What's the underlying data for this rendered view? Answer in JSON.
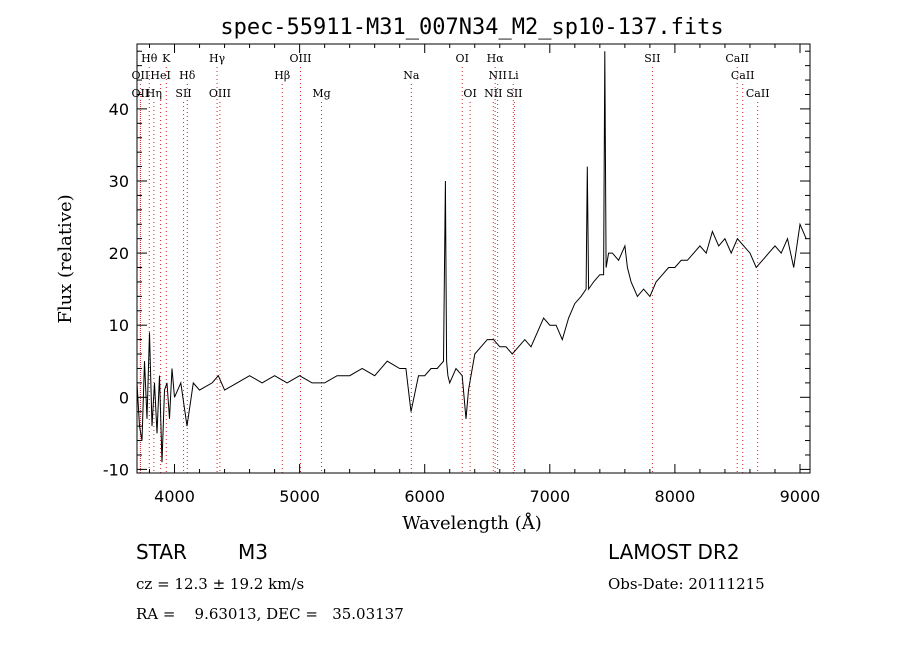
{
  "chart_data": {
    "type": "line",
    "title": "spec-55911-M31_007N34_M2_sp10-137.fits",
    "xlabel": "Wavelength (Å)",
    "ylabel": "Flux (relative)",
    "xlim": [
      3700,
      9080
    ],
    "ylim": [
      -10.5,
      49
    ],
    "xticks": [
      4000,
      5000,
      6000,
      7000,
      8000,
      9000
    ],
    "yticks": [
      -10,
      0,
      10,
      20,
      30,
      40
    ],
    "grid": false,
    "line_color": "#000000",
    "marker_color": "#cc2222",
    "series": [
      {
        "x": [
          3700,
          3720,
          3740,
          3760,
          3780,
          3800,
          3820,
          3840,
          3860,
          3880,
          3900,
          3920,
          3940,
          3960,
          3980,
          4000,
          4050,
          4100,
          4150,
          4200,
          4300,
          4350,
          4400,
          4500,
          4600,
          4700,
          4800,
          4900,
          5000,
          5100,
          5200,
          5300,
          5400,
          5500,
          5600,
          5700,
          5800,
          5850,
          5890,
          5950,
          6000,
          6050,
          6100,
          6150,
          6165,
          6175,
          6185,
          6200,
          6250,
          6300,
          6330,
          6350,
          6400,
          6450,
          6500,
          6550,
          6600,
          6650,
          6700,
          6750,
          6800,
          6850,
          6900,
          6950,
          7000,
          7050,
          7100,
          7150,
          7200,
          7250,
          7290,
          7300,
          7310,
          7350,
          7400,
          7430,
          7440,
          7450,
          7470,
          7500,
          7550,
          7600,
          7620,
          7650,
          7700,
          7750,
          7800,
          7850,
          7900,
          7950,
          8000,
          8050,
          8100,
          8150,
          8200,
          8250,
          8300,
          8350,
          8400,
          8450,
          8500,
          8550,
          8600,
          8650,
          8700,
          8750,
          8800,
          8850,
          8900,
          8950,
          9000,
          9050
        ],
        "y": [
          2,
          -4,
          -6,
          5,
          -3,
          9,
          -4,
          2,
          -5,
          3,
          -9,
          1,
          2,
          -3,
          4,
          0,
          2,
          -4,
          2,
          1,
          2,
          3,
          1,
          2,
          3,
          2,
          3,
          2,
          3,
          2,
          2,
          3,
          3,
          4,
          3,
          5,
          4,
          4,
          -2,
          3,
          3,
          4,
          4,
          5,
          30,
          5,
          3,
          2,
          4,
          3,
          -3,
          1,
          6,
          7,
          8,
          8,
          7,
          7,
          6,
          7,
          8,
          7,
          9,
          11,
          10,
          10,
          8,
          11,
          13,
          14,
          15,
          32,
          15,
          16,
          17,
          17,
          48,
          18,
          20,
          20,
          19,
          21,
          18,
          16,
          14,
          15,
          14,
          16,
          17,
          18,
          18,
          19,
          19,
          20,
          21,
          20,
          23,
          21,
          22,
          20,
          22,
          21,
          20,
          18,
          19,
          20,
          21,
          20,
          22,
          18,
          24,
          22
        ]
      }
    ],
    "line_markers": [
      {
        "label": "Hθ",
        "x": 3798,
        "row": 0
      },
      {
        "label": "K",
        "x": 3934,
        "row": 0
      },
      {
        "label": "Hγ",
        "x": 4340,
        "row": 0
      },
      {
        "label": "OIII",
        "x": 5007,
        "row": 0
      },
      {
        "label": "OI",
        "x": 6300,
        "row": 0
      },
      {
        "label": "Hα",
        "x": 6563,
        "row": 0
      },
      {
        "label": "SII",
        "x": 7820,
        "row": 0
      },
      {
        "label": "CaII",
        "x": 8498,
        "row": 0
      },
      {
        "label": "OII",
        "x": 3727,
        "row": 1
      },
      {
        "label": "HeI",
        "x": 3889,
        "row": 1
      },
      {
        "label": "Hδ",
        "x": 4102,
        "row": 1
      },
      {
        "label": "Hβ",
        "x": 4861,
        "row": 1
      },
      {
        "label": "Na",
        "x": 5893,
        "row": 1
      },
      {
        "label": "NII",
        "x": 6583,
        "row": 1
      },
      {
        "label": "Li",
        "x": 6708,
        "row": 1
      },
      {
        "label": "CaII",
        "x": 8542,
        "row": 1
      },
      {
        "label": "OII",
        "x": 3727,
        "row": 2
      },
      {
        "label": "Hη",
        "x": 3835,
        "row": 2
      },
      {
        "label": "SII",
        "x": 4072,
        "row": 2
      },
      {
        "label": "OIII",
        "x": 4363,
        "row": 2
      },
      {
        "label": "Mg",
        "x": 5175,
        "row": 2
      },
      {
        "label": "OI",
        "x": 6363,
        "row": 2
      },
      {
        "label": "NII",
        "x": 6548,
        "row": 2
      },
      {
        "label": "SII",
        "x": 6717,
        "row": 2
      },
      {
        "label": "CaII",
        "x": 8662,
        "row": 2
      }
    ]
  },
  "info": {
    "object_class": "STAR",
    "object_subclass": "M3",
    "survey": "LAMOST DR2",
    "redshift": "cz = 12.3 ± 19.2 km/s",
    "obs_date": "Obs-Date: 20111215",
    "coords": "RA =    9.63013, DEC =   35.03137"
  }
}
